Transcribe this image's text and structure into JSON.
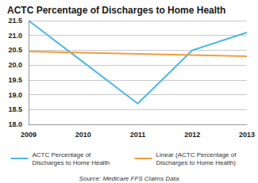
{
  "chart_data": {
    "type": "line",
    "title": "ACTC Percentage of Discharges to Home Health",
    "annotations": [
      "Source: Medicare FFS Claims Data"
    ],
    "categories": [
      "2009",
      "2010",
      "2011",
      "2012",
      "2013"
    ],
    "series": [
      {
        "name": "ACTC Percentage of Discharges to Home Health",
        "color": "#4db8e8",
        "values": [
          21.5,
          20.1,
          18.7,
          20.5,
          21.1
        ]
      },
      {
        "name": "Linear (ACTC Percentage of Discharges to Home Health)",
        "color": "#f39c3c",
        "values": [
          20.46,
          20.42,
          20.38,
          20.34,
          20.3
        ]
      }
    ],
    "ylim": [
      18,
      21.5
    ],
    "yticks": [
      {
        "value": 18,
        "label": "18.0"
      },
      {
        "value": 18.5,
        "label": "18.5"
      },
      {
        "value": 19,
        "label": "19.0"
      },
      {
        "value": 19.5,
        "label": "19.5"
      },
      {
        "value": 20,
        "label": "20.0"
      },
      {
        "value": 20.5,
        "label": "20.5"
      },
      {
        "value": 21,
        "label": "21.0"
      },
      {
        "value": 21.5,
        "label": "21.5"
      }
    ],
    "grid": true,
    "legend": "bottom"
  }
}
